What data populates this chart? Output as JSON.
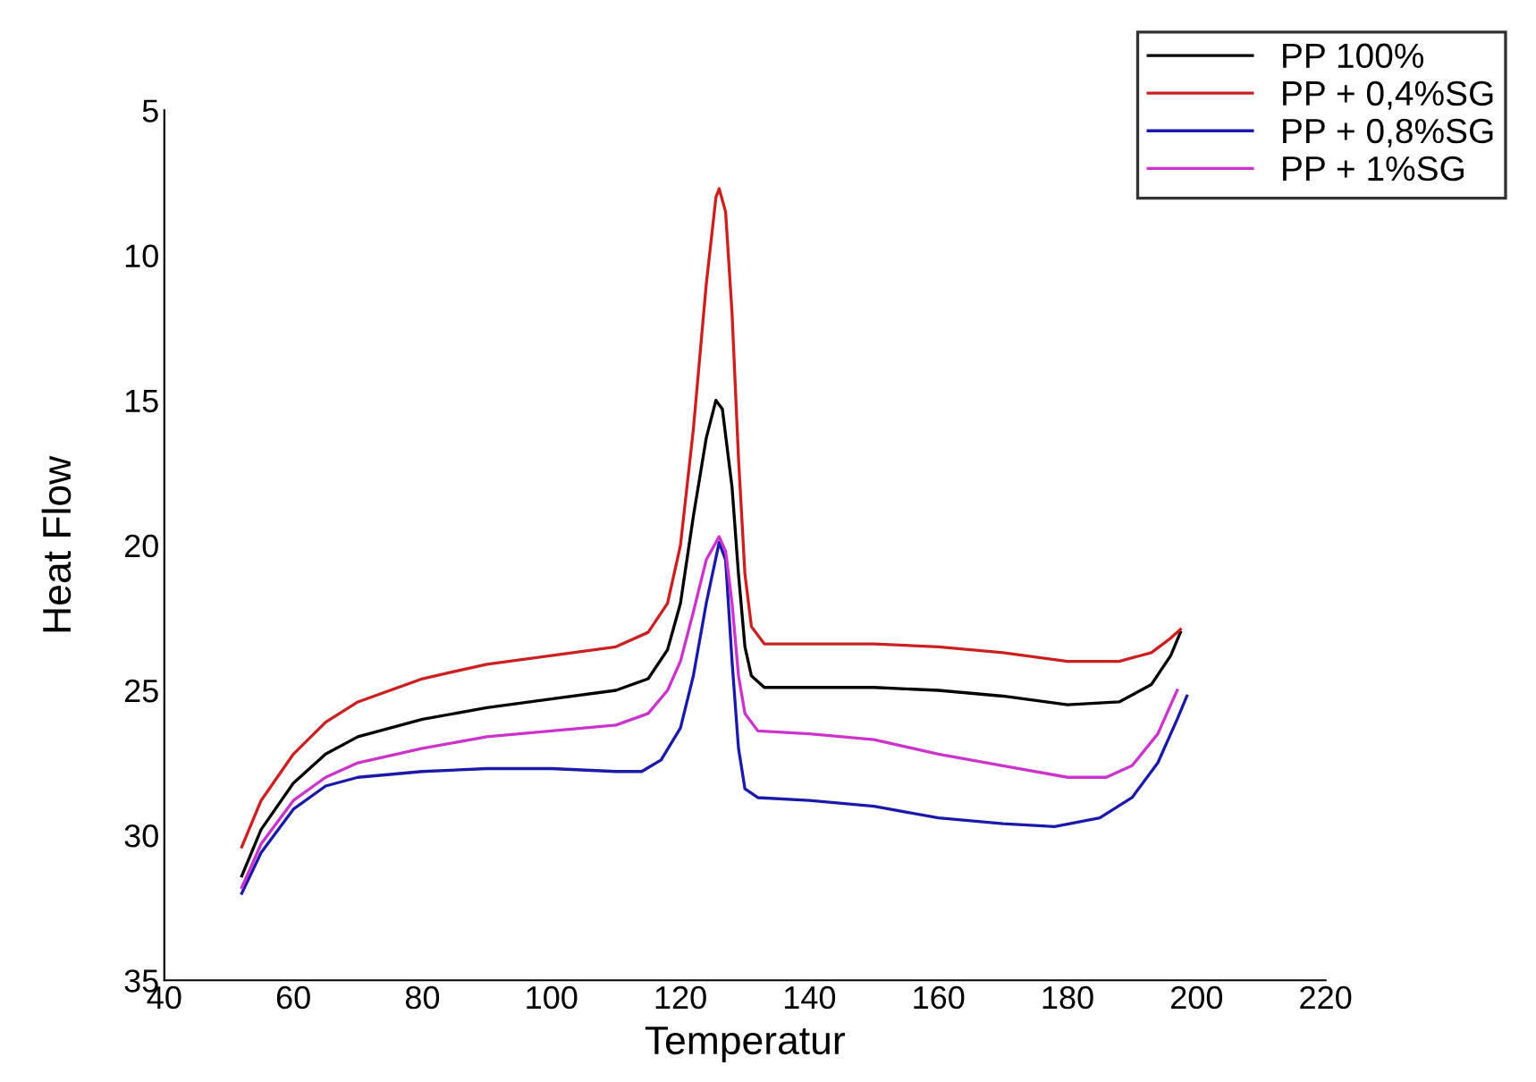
{
  "chart_data": {
    "type": "line",
    "xlabel": "Temperatur",
    "ylabel": "Heat Flow",
    "xlim": [
      40,
      220
    ],
    "xticks": [
      40,
      60,
      80,
      100,
      120,
      140,
      160,
      180,
      200,
      220
    ],
    "ylim": [
      35,
      5
    ],
    "yticks": [
      5,
      10,
      15,
      20,
      25,
      30,
      35
    ],
    "grid": false,
    "legend": "top right",
    "marker": "none",
    "line_style": "solid",
    "series": [
      {
        "name": "PP 100%",
        "color": "#000000",
        "x": [
          52,
          55,
          60,
          65,
          70,
          80,
          90,
          100,
          110,
          115,
          118,
          120,
          122,
          124,
          125.5,
          126.5,
          128,
          129,
          130,
          131,
          133,
          140,
          150,
          160,
          170,
          180,
          188,
          193,
          196,
          197.5
        ],
        "values": [
          31.4,
          29.8,
          28.2,
          27.2,
          26.6,
          26.0,
          25.6,
          25.3,
          25.0,
          24.6,
          23.6,
          22,
          19,
          16.3,
          15.0,
          15.3,
          18,
          21,
          23.5,
          24.5,
          24.9,
          24.9,
          24.9,
          25.0,
          25.2,
          25.5,
          25.4,
          24.8,
          23.8,
          23.0
        ]
      },
      {
        "name": "PP + 0,4%SG",
        "color": "#cc2020",
        "x": [
          52,
          55,
          60,
          65,
          70,
          80,
          90,
          100,
          110,
          115,
          118,
          120,
          122,
          124,
          125.5,
          126,
          127,
          128,
          129,
          130,
          131,
          133,
          140,
          150,
          160,
          170,
          180,
          188,
          193,
          196,
          197.5
        ],
        "values": [
          30.4,
          28.8,
          27.2,
          26.1,
          25.4,
          24.6,
          24.1,
          23.8,
          23.5,
          23.0,
          22.0,
          20.0,
          16,
          11,
          8.0,
          7.7,
          8.5,
          12,
          17,
          21,
          22.8,
          23.4,
          23.4,
          23.4,
          23.5,
          23.7,
          24.0,
          24.0,
          23.7,
          23.2,
          22.9
        ]
      },
      {
        "name": "PP + 0,8%SG",
        "color": "#1a1aaa",
        "x": [
          52,
          55,
          60,
          65,
          70,
          80,
          90,
          100,
          110,
          114,
          117,
          120,
          122,
          124,
          126,
          127,
          128,
          129,
          130,
          132,
          140,
          150,
          160,
          170,
          178,
          185,
          190,
          194,
          197,
          198.5
        ],
        "values": [
          32.0,
          30.6,
          29.1,
          28.3,
          28.0,
          27.8,
          27.7,
          27.7,
          27.8,
          27.8,
          27.4,
          26.3,
          24.5,
          22.0,
          19.9,
          20.5,
          24,
          27,
          28.4,
          28.7,
          28.8,
          29.0,
          29.4,
          29.6,
          29.7,
          29.4,
          28.7,
          27.5,
          26.0,
          25.2
        ]
      },
      {
        "name": "PP + 1%SG",
        "color": "#cc33cc",
        "x": [
          52,
          55,
          60,
          65,
          70,
          80,
          90,
          100,
          110,
          115,
          118,
          120,
          122,
          124,
          126,
          127,
          128,
          129,
          130,
          132,
          140,
          150,
          160,
          170,
          180,
          186,
          190,
          194,
          196,
          197
        ],
        "values": [
          31.8,
          30.3,
          28.8,
          28.0,
          27.5,
          27.0,
          26.6,
          26.4,
          26.2,
          25.8,
          25.0,
          24.0,
          22.3,
          20.5,
          19.7,
          20.2,
          22,
          24.5,
          25.8,
          26.4,
          26.5,
          26.7,
          27.2,
          27.6,
          28.0,
          28.0,
          27.6,
          26.5,
          25.5,
          25.0
        ]
      }
    ]
  }
}
